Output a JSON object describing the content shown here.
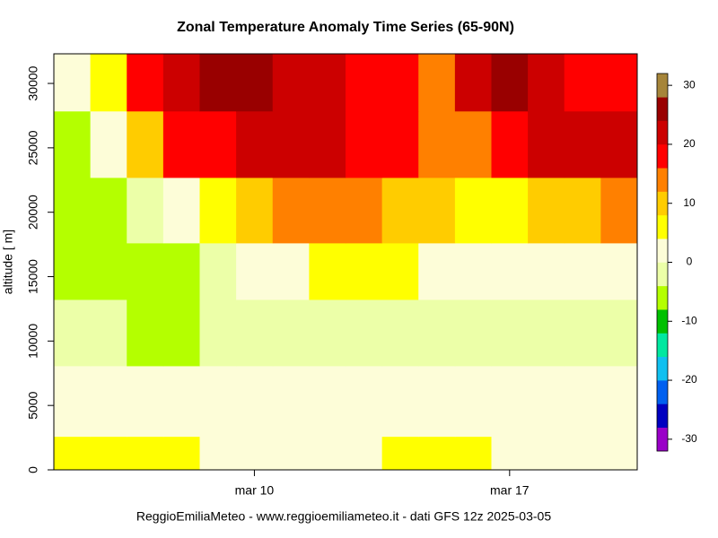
{
  "chart_data": {
    "type": "heatmap",
    "title": "Zonal Temperature Anomaly Time Series (65-90N)",
    "ylabel": "altitude [ m]",
    "caption": "ReggioEmiliaMeteo - www.reggioemiliameteo.it - dati GFS 12z 2025-03-05",
    "x": [
      5,
      6,
      7,
      8,
      9,
      10,
      11,
      12,
      13,
      14,
      15,
      16,
      17,
      18,
      19,
      20
    ],
    "xlim": [
      4.5,
      20.5
    ],
    "xticks": [
      {
        "value": 10,
        "label": "mar 10"
      },
      {
        "value": 17,
        "label": "mar 17"
      }
    ],
    "y_edges": [
      0,
      2600,
      8080,
      13230,
      17620,
      22700,
      27860,
      32300
    ],
    "ylim": [
      0,
      32300
    ],
    "yticks": [
      0,
      5000,
      10000,
      15000,
      20000,
      25000,
      30000
    ],
    "z": [
      [
        6,
        6,
        6,
        6,
        2,
        2,
        2,
        2,
        2,
        6,
        6,
        6,
        2,
        2,
        2,
        2
      ],
      [
        2,
        2,
        2,
        2,
        2,
        2,
        2,
        2,
        2,
        2,
        2,
        2,
        2,
        2,
        2,
        2
      ],
      [
        -2,
        -2,
        -6,
        -6,
        -2,
        -2,
        -2,
        -2,
        -2,
        -2,
        -2,
        -2,
        -2,
        -2,
        -2,
        -2
      ],
      [
        -6,
        -6,
        -6,
        -6,
        -2,
        2,
        2,
        6,
        6,
        6,
        2,
        2,
        2,
        2,
        2,
        2
      ],
      [
        -6,
        -6,
        -2,
        2,
        6,
        10,
        14,
        14,
        14,
        10,
        10,
        6,
        6,
        10,
        10,
        14
      ],
      [
        -6,
        2,
        10,
        18,
        18,
        22,
        22,
        22,
        18,
        18,
        14,
        14,
        18,
        22,
        22,
        22
      ],
      [
        2,
        6,
        18,
        22,
        26,
        26,
        22,
        22,
        18,
        18,
        14,
        22,
        26,
        22,
        18,
        18
      ]
    ],
    "color_levels": [
      -32,
      -28,
      -24,
      -20,
      -16,
      -12,
      -8,
      -4,
      0,
      4,
      8,
      12,
      16,
      20,
      24,
      28,
      32
    ],
    "colors": [
      "#9a00c8",
      "#0000c0",
      "#0060f0",
      "#10c0f0",
      "#00e8a0",
      "#00c000",
      "#b4ff00",
      "#ecffa8",
      "#fdfdd8",
      "#ffff00",
      "#ffcc00",
      "#ff8000",
      "#ff0000",
      "#cc0000",
      "#990000",
      "#a6853a"
    ],
    "color_ticks": [
      -30,
      -20,
      -10,
      0,
      10,
      20,
      30
    ]
  }
}
